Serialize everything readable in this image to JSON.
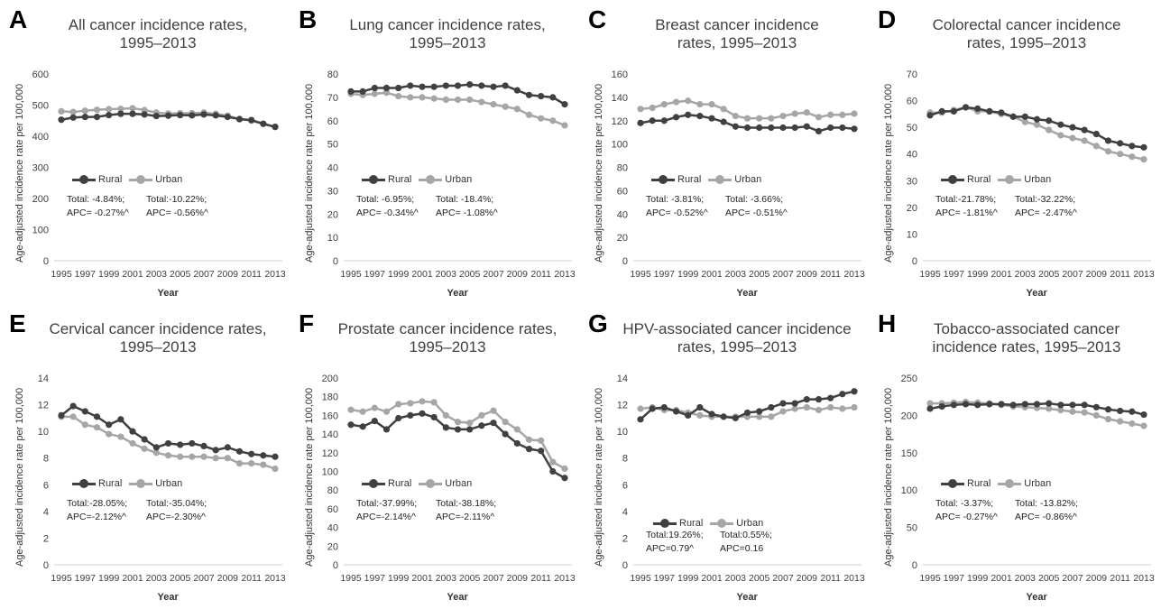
{
  "colors": {
    "rural": "#404040",
    "urban": "#a6a6a6"
  },
  "ylabel": "Age-adjusted incidence rate per 100,000",
  "xlabel": "Year",
  "legend": {
    "rural": "Rural",
    "urban": "Urban"
  },
  "chart_data": [
    {
      "type": "line",
      "panel": "A",
      "title": "All cancer incidence rates,\n1995–2013",
      "x": [
        1995,
        1996,
        1997,
        1998,
        1999,
        2000,
        2001,
        2002,
        2003,
        2004,
        2005,
        2006,
        2007,
        2008,
        2009,
        2010,
        2011,
        2012,
        2013
      ],
      "xtick_labels": [
        "1995",
        "1997",
        "1999",
        "2001",
        "2003",
        "2005",
        "2007",
        "2009",
        "2011",
        "2013"
      ],
      "ylim": [
        0,
        600
      ],
      "yticks": [
        0,
        100,
        200,
        300,
        400,
        500,
        600
      ],
      "series": [
        {
          "name": "Rural",
          "values": [
            453,
            460,
            462,
            462,
            468,
            472,
            472,
            470,
            465,
            466,
            468,
            467,
            470,
            467,
            462,
            455,
            452,
            440,
            430
          ]
        },
        {
          "name": "Urban",
          "values": [
            480,
            478,
            482,
            485,
            487,
            488,
            490,
            484,
            476,
            473,
            474,
            474,
            476,
            472,
            466,
            455,
            450,
            440,
            430
          ]
        }
      ],
      "annotations": {
        "rural": "Total: -4.84%;\nAPC= -0.27%^",
        "urban": "Total:-10.22%;\nAPC= -0.56%^"
      },
      "grid": false,
      "legend_position": "middle-left"
    },
    {
      "type": "line",
      "panel": "B",
      "title": "Lung cancer incidence rates,\n1995–2013",
      "x": [
        1995,
        1996,
        1997,
        1998,
        1999,
        2000,
        2001,
        2002,
        2003,
        2004,
        2005,
        2006,
        2007,
        2008,
        2009,
        2010,
        2011,
        2012,
        2013
      ],
      "xtick_labels": [
        "1995",
        "1997",
        "1999",
        "2001",
        "2003",
        "2005",
        "2007",
        "2009",
        "2011",
        "2013"
      ],
      "ylim": [
        0,
        80
      ],
      "yticks": [
        0,
        10,
        20,
        30,
        40,
        50,
        60,
        70,
        80
      ],
      "series": [
        {
          "name": "Rural",
          "values": [
            72.5,
            72.5,
            74,
            74,
            74,
            75,
            74.5,
            74.5,
            75,
            75,
            75.5,
            75,
            74.5,
            75,
            73,
            71,
            70.5,
            70,
            67
          ]
        },
        {
          "name": "Urban",
          "values": [
            71.5,
            71,
            71.5,
            72,
            70.5,
            70,
            70,
            69.5,
            69,
            69,
            69,
            68,
            67,
            66,
            65,
            62.5,
            61,
            60,
            58
          ]
        }
      ],
      "annotations": {
        "rural": "Total: -6.95%;\nAPC= -0.34%^",
        "urban": "Total: -18.4%;\nAPC= -1.08%^"
      },
      "grid": false,
      "legend_position": "middle-left"
    },
    {
      "type": "line",
      "panel": "C",
      "title": "Breast cancer incidence\nrates, 1995–2013",
      "x": [
        1995,
        1996,
        1997,
        1998,
        1999,
        2000,
        2001,
        2002,
        2003,
        2004,
        2005,
        2006,
        2007,
        2008,
        2009,
        2010,
        2011,
        2012,
        2013
      ],
      "xtick_labels": [
        "1995",
        "1997",
        "1999",
        "2001",
        "2003",
        "2005",
        "2007",
        "2009",
        "2011",
        "2013"
      ],
      "ylim": [
        0,
        160
      ],
      "yticks": [
        0,
        20,
        40,
        60,
        80,
        100,
        120,
        140,
        160
      ],
      "series": [
        {
          "name": "Rural",
          "values": [
            118,
            120,
            120,
            123,
            125,
            124,
            122,
            119,
            115,
            114,
            114,
            114,
            114,
            114,
            115,
            111,
            114,
            114,
            113
          ]
        },
        {
          "name": "Urban",
          "values": [
            130,
            131,
            134,
            136,
            137,
            134,
            134,
            130,
            124,
            122,
            122,
            122,
            124,
            126,
            127,
            123,
            125,
            125,
            126
          ]
        }
      ],
      "annotations": {
        "rural": "Total:  -3.81%;\nAPC=  -0.52%^",
        "urban": "Total:  -3.66%;\nAPC=  -0.51%^"
      },
      "grid": false,
      "legend_position": "middle-left"
    },
    {
      "type": "line",
      "panel": "D",
      "title": "Colorectal cancer incidence\nrates, 1995–2013",
      "x": [
        1995,
        1996,
        1997,
        1998,
        1999,
        2000,
        2001,
        2002,
        2003,
        2004,
        2005,
        2006,
        2007,
        2008,
        2009,
        2010,
        2011,
        2012,
        2013
      ],
      "xtick_labels": [
        "1995",
        "1997",
        "1999",
        "2001",
        "2003",
        "2005",
        "2007",
        "2009",
        "2011",
        "2013"
      ],
      "ylim": [
        0,
        70
      ],
      "yticks": [
        0,
        10,
        20,
        30,
        40,
        50,
        60,
        70
      ],
      "series": [
        {
          "name": "Rural",
          "values": [
            54.5,
            56,
            56,
            57.5,
            57,
            56,
            55.5,
            54,
            54,
            53,
            52.5,
            51,
            50,
            49,
            47.5,
            45,
            44,
            43,
            42.5
          ]
        },
        {
          "name": "Urban",
          "values": [
            55.5,
            55.5,
            56.5,
            57.5,
            56,
            56,
            55,
            54,
            52,
            51,
            49,
            47,
            46,
            45,
            43,
            41,
            40,
            39,
            38
          ]
        }
      ],
      "annotations": {
        "rural": "Total:-21.78%;\nAPC= -1.81%^",
        "urban": "Total:-32.22%;\nAPC= -2.47%^"
      },
      "grid": false,
      "legend_position": "middle-left"
    },
    {
      "type": "line",
      "panel": "E",
      "title": "Cervical cancer incidence rates,\n1995–2013",
      "x": [
        1995,
        1996,
        1997,
        1998,
        1999,
        2000,
        2001,
        2002,
        2003,
        2004,
        2005,
        2006,
        2007,
        2008,
        2009,
        2010,
        2011,
        2012,
        2013
      ],
      "xtick_labels": [
        "1995",
        "1997",
        "1999",
        "2001",
        "2003",
        "2005",
        "2007",
        "2009",
        "2011",
        "2013"
      ],
      "ylim": [
        0,
        14
      ],
      "yticks": [
        0,
        2,
        4,
        6,
        8,
        10,
        12,
        14
      ],
      "series": [
        {
          "name": "Rural",
          "values": [
            11.2,
            11.9,
            11.5,
            11.1,
            10.5,
            10.9,
            10.0,
            9.4,
            8.8,
            9.1,
            9.0,
            9.1,
            8.9,
            8.6,
            8.8,
            8.5,
            8.3,
            8.2,
            8.1
          ]
        },
        {
          "name": "Urban",
          "values": [
            11.1,
            11.1,
            10.5,
            10.3,
            9.8,
            9.6,
            9.1,
            8.7,
            8.4,
            8.2,
            8.1,
            8.1,
            8.1,
            8.0,
            8.0,
            7.6,
            7.6,
            7.5,
            7.2
          ]
        }
      ],
      "annotations": {
        "rural": "Total:-28.05%;\nAPC=-2.12%^",
        "urban": "Total:-35.04%;\nAPC=-2.30%^"
      },
      "grid": false,
      "legend_position": "middle-left"
    },
    {
      "type": "line",
      "panel": "F",
      "title": "Prostate cancer incidence rates,\n1995–2013",
      "x": [
        1995,
        1996,
        1997,
        1998,
        1999,
        2000,
        2001,
        2002,
        2003,
        2004,
        2005,
        2006,
        2007,
        2008,
        2009,
        2010,
        2011,
        2012,
        2013
      ],
      "xtick_labels": [
        "1995",
        "1997",
        "1999",
        "2001",
        "2003",
        "2005",
        "2007",
        "2009",
        "2011",
        "2013"
      ],
      "ylim": [
        0,
        200
      ],
      "yticks": [
        0,
        20,
        40,
        60,
        80,
        100,
        120,
        140,
        160,
        180,
        200
      ],
      "series": [
        {
          "name": "Rural",
          "values": [
            150,
            148,
            154,
            145,
            157,
            160,
            162,
            158,
            147,
            145,
            145,
            149,
            152,
            140,
            130,
            124,
            122,
            100,
            93
          ]
        },
        {
          "name": "Urban",
          "values": [
            166,
            164,
            168,
            164,
            172,
            173,
            175,
            174,
            160,
            153,
            152,
            160,
            165,
            153,
            145,
            134,
            133,
            110,
            103
          ]
        }
      ],
      "annotations": {
        "rural": "Total:-37.99%;\nAPC=-2.14%^",
        "urban": "Total:-38.18%;\nAPC=-2.11%^"
      },
      "grid": false,
      "legend_position": "middle-left"
    },
    {
      "type": "line",
      "panel": "G",
      "title": "HPV-associated cancer incidence\nrates, 1995–2013",
      "x": [
        1995,
        1996,
        1997,
        1998,
        1999,
        2000,
        2001,
        2002,
        2003,
        2004,
        2005,
        2006,
        2007,
        2008,
        2009,
        2010,
        2011,
        2012,
        2013
      ],
      "xtick_labels": [
        "1995",
        "1997",
        "1999",
        "2001",
        "2003",
        "2005",
        "2007",
        "2009",
        "2011",
        "2013"
      ],
      "ylim": [
        0,
        14
      ],
      "yticks": [
        0,
        2,
        4,
        6,
        8,
        10,
        12,
        14
      ],
      "series": [
        {
          "name": "Rural",
          "values": [
            10.9,
            11.7,
            11.8,
            11.5,
            11.2,
            11.8,
            11.3,
            11.1,
            11.0,
            11.4,
            11.5,
            11.8,
            12.1,
            12.1,
            12.4,
            12.4,
            12.5,
            12.8,
            13.0
          ]
        },
        {
          "name": "Urban",
          "values": [
            11.7,
            11.8,
            11.6,
            11.6,
            11.4,
            11.2,
            11.1,
            11.1,
            11.1,
            11.1,
            11.1,
            11.1,
            11.5,
            11.7,
            11.8,
            11.6,
            11.8,
            11.7,
            11.8
          ]
        }
      ],
      "annotations": {
        "rural": "Total:19.26%;\nAPC=0.79^",
        "urban": "Total:0.55%;\nAPC=0.16"
      },
      "grid": false,
      "legend_position": "bottom-left"
    },
    {
      "type": "line",
      "panel": "H",
      "title": "Tobacco-associated cancer\nincidence rates, 1995–2013",
      "x": [
        1995,
        1996,
        1997,
        1998,
        1999,
        2000,
        2001,
        2002,
        2003,
        2004,
        2005,
        2006,
        2007,
        2008,
        2009,
        2010,
        2011,
        2012,
        2013
      ],
      "xtick_labels": [
        "1995",
        "1997",
        "1999",
        "2001",
        "2003",
        "2005",
        "2007",
        "2009",
        "2011",
        "2013"
      ],
      "ylim": [
        0,
        250
      ],
      "yticks": [
        0,
        50,
        100,
        150,
        200,
        250
      ],
      "series": [
        {
          "name": "Rural",
          "values": [
            209,
            212,
            214,
            215,
            214,
            215,
            215,
            214,
            215,
            215,
            216,
            214,
            214,
            214,
            211,
            208,
            206,
            205,
            201
          ]
        },
        {
          "name": "Urban",
          "values": [
            216,
            216,
            217,
            218,
            217,
            216,
            214,
            212,
            211,
            210,
            209,
            207,
            205,
            204,
            200,
            195,
            192,
            189,
            186
          ]
        }
      ],
      "annotations": {
        "rural": "Total: -3.37%;\nAPC= -0.27%^",
        "urban": "Total: -13.82%;\nAPC= -0.86%^"
      },
      "grid": false,
      "legend_position": "middle-left"
    }
  ]
}
